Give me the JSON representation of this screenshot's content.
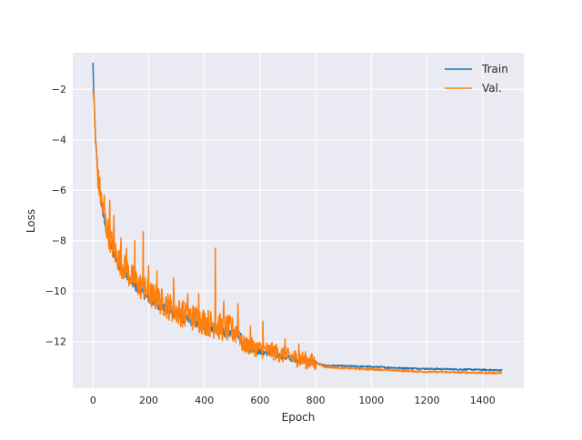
{
  "chart_data": {
    "type": "line",
    "title": "",
    "xlabel": "Epoch",
    "ylabel": "Loss",
    "xlim": [
      -73,
      1548
    ],
    "ylim": [
      -13.85,
      -0.55
    ],
    "xticks": [
      0,
      200,
      400,
      600,
      800,
      1000,
      1200,
      1400
    ],
    "xtick_labels": [
      "0",
      "200",
      "400",
      "600",
      "800",
      "1000",
      "1200",
      "1400"
    ],
    "yticks": [
      -2,
      -4,
      -6,
      -8,
      -10,
      -12
    ],
    "ytick_labels": [
      "−2",
      "−4",
      "−6",
      "−8",
      "−10",
      "−12"
    ],
    "grid": true,
    "legend_position": "top-right",
    "series": [
      {
        "name": "Train",
        "color": "#1f77b4",
        "x": [
          0,
          2,
          5,
          10,
          15,
          20,
          30,
          40,
          50,
          60,
          80,
          100,
          120,
          150,
          180,
          200,
          250,
          300,
          350,
          400,
          450,
          500,
          530,
          535,
          550,
          600,
          650,
          700,
          750,
          800,
          815,
          830,
          900,
          1000,
          1100,
          1200,
          1300,
          1400,
          1470
        ],
        "y": [
          -1.0,
          -2.0,
          -3.0,
          -4.2,
          -5.0,
          -5.6,
          -6.5,
          -7.2,
          -7.7,
          -8.1,
          -8.7,
          -9.1,
          -9.4,
          -9.8,
          -10.1,
          -10.3,
          -10.65,
          -10.95,
          -11.2,
          -11.4,
          -11.55,
          -11.7,
          -11.8,
          -12.2,
          -12.25,
          -12.4,
          -12.5,
          -12.65,
          -12.75,
          -12.85,
          -12.9,
          -12.95,
          -12.97,
          -13.0,
          -13.05,
          -13.08,
          -13.1,
          -13.12,
          -13.14
        ]
      },
      {
        "name": "Val.",
        "color": "#ff7f0e",
        "x": [
          0,
          2,
          5,
          10,
          15,
          20,
          30,
          40,
          50,
          60,
          80,
          100,
          120,
          150,
          180,
          200,
          250,
          300,
          350,
          400,
          450,
          500,
          530,
          535,
          550,
          600,
          650,
          700,
          750,
          800,
          815,
          830,
          900,
          1000,
          1100,
          1200,
          1300,
          1400,
          1470
        ],
        "y": [
          -1.7,
          -2.3,
          -3.2,
          -4.3,
          -5.1,
          -5.7,
          -6.4,
          -7.0,
          -7.5,
          -7.9,
          -8.5,
          -8.9,
          -9.2,
          -9.6,
          -9.9,
          -10.1,
          -10.45,
          -10.8,
          -11.0,
          -11.2,
          -11.4,
          -11.55,
          -11.7,
          -12.1,
          -12.15,
          -12.3,
          -12.4,
          -12.6,
          -12.7,
          -12.85,
          -12.9,
          -13.0,
          -13.05,
          -13.1,
          -13.15,
          -13.2,
          -13.22,
          -13.24,
          -13.25
        ],
        "spikes": [
          {
            "x": 20,
            "y": -5.2
          },
          {
            "x": 40,
            "y": -6.2
          },
          {
            "x": 60,
            "y": -6.4
          },
          {
            "x": 75,
            "y": -7.0
          },
          {
            "x": 100,
            "y": -7.9
          },
          {
            "x": 120,
            "y": -8.3
          },
          {
            "x": 150,
            "y": -8.0
          },
          {
            "x": 180,
            "y": -7.65
          },
          {
            "x": 200,
            "y": -9.0
          },
          {
            "x": 230,
            "y": -9.2
          },
          {
            "x": 290,
            "y": -9.5
          },
          {
            "x": 340,
            "y": -10.1
          },
          {
            "x": 380,
            "y": -10.1
          },
          {
            "x": 440,
            "y": -8.3
          },
          {
            "x": 470,
            "y": -10.4
          },
          {
            "x": 520,
            "y": -10.5
          },
          {
            "x": 565,
            "y": -11.4
          },
          {
            "x": 610,
            "y": -11.2
          },
          {
            "x": 690,
            "y": -11.9
          },
          {
            "x": 740,
            "y": -12.1
          }
        ]
      }
    ]
  }
}
